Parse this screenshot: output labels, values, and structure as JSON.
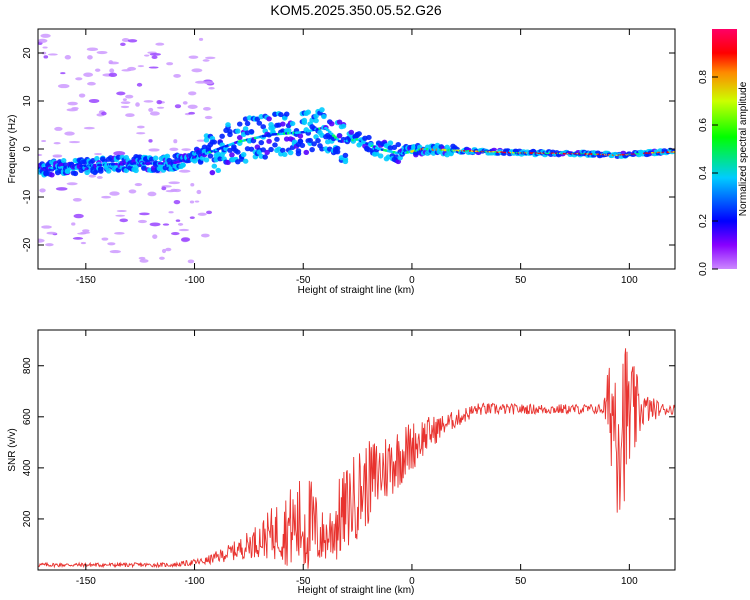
{
  "title": "KOM5.2025.350.05.52.G26",
  "chart_data": [
    {
      "type": "heatmap",
      "xlabel": "Height of straight line (km)",
      "ylabel": "Frequency (Hz)",
      "xlim": [
        -172,
        121
      ],
      "ylim": [
        -25,
        25
      ],
      "xticks": [
        -150,
        -100,
        -50,
        0,
        50,
        100
      ],
      "yticks": [
        -20,
        -10,
        0,
        10,
        20
      ],
      "colorbar": {
        "label": "Normalized spectral amplitude",
        "range": [
          0,
          1
        ],
        "ticks": [
          "0.0",
          "0.2",
          "0.4",
          "0.6",
          "0.8"
        ],
        "colormap": [
          "#ff0000",
          "#ffff00",
          "#00ff00",
          "#00ffff",
          "#0000ff",
          "#ff00ff"
        ]
      },
      "ridge": {
        "description_points": [
          {
            "x": -168,
            "f": -4
          },
          {
            "x": -150,
            "f": -3.5
          },
          {
            "x": -130,
            "f": -3
          },
          {
            "x": -110,
            "f": -3
          },
          {
            "x": -95,
            "f": -1
          },
          {
            "x": -80,
            "f": 1.5
          },
          {
            "x": -65,
            "f": 3
          },
          {
            "x": -50,
            "f": 3.5
          },
          {
            "x": -40,
            "f": 4.5
          },
          {
            "x": -33,
            "f": 1.5
          },
          {
            "x": -25,
            "f": 2
          },
          {
            "x": -15,
            "f": 0
          },
          {
            "x": -5,
            "f": -1
          },
          {
            "x": 5,
            "f": 0
          },
          {
            "x": 20,
            "f": -0.3
          },
          {
            "x": 50,
            "f": -0.8
          },
          {
            "x": 80,
            "f": -1
          },
          {
            "x": 95,
            "f": -1.3
          },
          {
            "x": 110,
            "f": -0.8
          },
          {
            "x": 120,
            "f": -0.6
          }
        ]
      }
    },
    {
      "type": "line",
      "xlabel": "Height of straight line (km)",
      "ylabel": "SNR (v/v)",
      "xlim": [
        -172,
        121
      ],
      "ylim": [
        0,
        940
      ],
      "xticks": [
        -150,
        -100,
        -50,
        0,
        50,
        100
      ],
      "yticks": [
        200,
        400,
        600,
        800
      ],
      "color": "#e8322e",
      "series": [
        {
          "name": "SNR",
          "envelope": [
            {
              "x": -172,
              "mean": 20,
              "amp": 8
            },
            {
              "x": -110,
              "mean": 20,
              "amp": 8
            },
            {
              "x": -95,
              "mean": 35,
              "amp": 15
            },
            {
              "x": -80,
              "mean": 80,
              "amp": 40
            },
            {
              "x": -70,
              "mean": 120,
              "amp": 70
            },
            {
              "x": -60,
              "mean": 160,
              "amp": 130
            },
            {
              "x": -48,
              "mean": 180,
              "amp": 220
            },
            {
              "x": -40,
              "mean": 120,
              "amp": 90
            },
            {
              "x": -35,
              "mean": 180,
              "amp": 160
            },
            {
              "x": -25,
              "mean": 300,
              "amp": 180
            },
            {
              "x": -15,
              "mean": 380,
              "amp": 150
            },
            {
              "x": -5,
              "mean": 450,
              "amp": 120
            },
            {
              "x": 5,
              "mean": 520,
              "amp": 80
            },
            {
              "x": 15,
              "mean": 570,
              "amp": 40
            },
            {
              "x": 30,
              "mean": 630,
              "amp": 25
            },
            {
              "x": 50,
              "mean": 630,
              "amp": 20
            },
            {
              "x": 88,
              "mean": 630,
              "amp": 20
            },
            {
              "x": 91,
              "mean": 640,
              "amp": 200
            },
            {
              "x": 95,
              "mean": 600,
              "amp": 420
            },
            {
              "x": 100,
              "mean": 600,
              "amp": 260
            },
            {
              "x": 106,
              "mean": 630,
              "amp": 70
            },
            {
              "x": 115,
              "mean": 630,
              "amp": 25
            },
            {
              "x": 121,
              "mean": 630,
              "amp": 20
            }
          ]
        }
      ]
    }
  ]
}
